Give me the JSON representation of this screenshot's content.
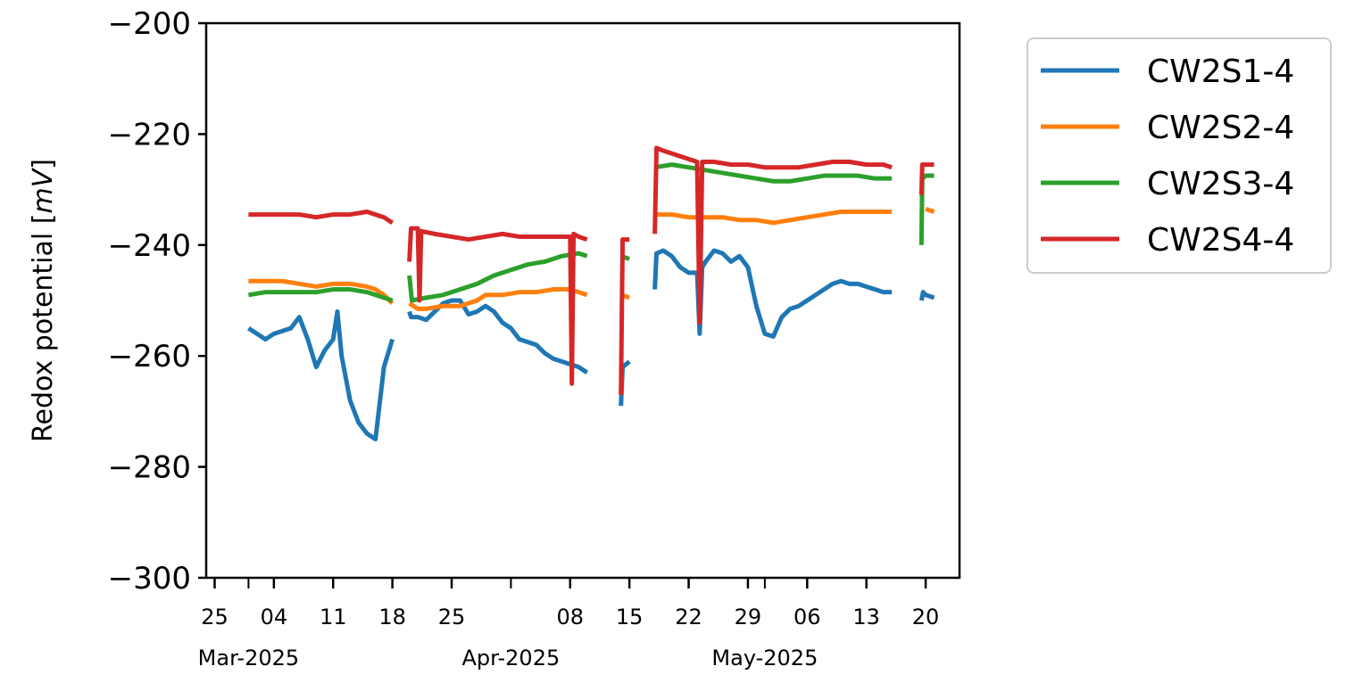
{
  "chart_data": {
    "type": "line",
    "ylabel": "Redox potential [",
    "ylabel_unit": "mV",
    "ylabel_close": "]",
    "ylim": [
      -300,
      -200
    ],
    "yticks": [
      -200,
      -220,
      -240,
      -260,
      -280,
      -300
    ],
    "ytick_labels": [
      "−200",
      "−220",
      "−240",
      "−260",
      "−280",
      "−300"
    ],
    "xlim": [
      "2025-02-24",
      "2025-05-24"
    ],
    "xticks_major": [
      {
        "date": "2025-02-25",
        "label": "25"
      },
      {
        "date": "2025-03-04",
        "label": "04"
      },
      {
        "date": "2025-03-11",
        "label": "11"
      },
      {
        "date": "2025-03-18",
        "label": "18"
      },
      {
        "date": "2025-03-25",
        "label": "25"
      },
      {
        "date": "2025-04-08",
        "label": "08"
      },
      {
        "date": "2025-04-15",
        "label": "15"
      },
      {
        "date": "2025-04-22",
        "label": "22"
      },
      {
        "date": "2025-04-29",
        "label": "29"
      },
      {
        "date": "2025-05-06",
        "label": "06"
      },
      {
        "date": "2025-05-13",
        "label": "13"
      },
      {
        "date": "2025-05-20",
        "label": "20"
      }
    ],
    "xticks_minor": [
      "2025-03-01",
      "2025-04-01",
      "2025-05-01"
    ],
    "month_labels": [
      {
        "date": "2025-03-01",
        "label": "Mar-2025"
      },
      {
        "date": "2025-04-01",
        "label": "Apr-2025"
      },
      {
        "date": "2025-05-01",
        "label": "May-2025"
      }
    ],
    "grid": false,
    "legend_position": "outside-right-top",
    "series": [
      {
        "name": "CW2S1-4",
        "color": "#1f77b4",
        "segments": [
          [
            [
              "2025-03-01",
              -255.0
            ],
            [
              "2025-03-02",
              -256.0
            ],
            [
              "2025-03-03",
              -257.0
            ],
            [
              "2025-03-04",
              -256.0
            ],
            [
              "2025-03-05",
              -255.5
            ],
            [
              "2025-03-06",
              -255.0
            ],
            [
              "2025-03-07",
              -253.0
            ],
            [
              "2025-03-08",
              -257.0
            ],
            [
              "2025-03-09",
              -262.0
            ],
            [
              "2025-03-10",
              -259.0
            ],
            [
              "2025-03-11",
              -257.0
            ],
            [
              "2025-03-11.5",
              -252.0
            ],
            [
              "2025-03-12",
              -260.0
            ],
            [
              "2025-03-13",
              -268.0
            ],
            [
              "2025-03-14",
              -272.0
            ],
            [
              "2025-03-15",
              -274.0
            ],
            [
              "2025-03-16",
              -275.0
            ],
            [
              "2025-03-17",
              -262.0
            ],
            [
              "2025-03-18",
              -257.0
            ]
          ],
          [
            [
              "2025-03-20",
              -252.0
            ],
            [
              "2025-03-20.2",
              -253.0
            ],
            [
              "2025-03-21",
              -253.0
            ],
            [
              "2025-03-22",
              -253.5
            ],
            [
              "2025-03-23",
              -252.0
            ],
            [
              "2025-03-24",
              -250.5
            ],
            [
              "2025-03-25",
              -250.0
            ],
            [
              "2025-03-26",
              -250.0
            ],
            [
              "2025-03-27",
              -252.5
            ],
            [
              "2025-03-28",
              -252.0
            ],
            [
              "2025-03-29",
              -251.0
            ],
            [
              "2025-03-30",
              -252.0
            ],
            [
              "2025-03-31",
              -254.0
            ],
            [
              "2025-04-01",
              -255.0
            ],
            [
              "2025-04-02",
              -257.0
            ],
            [
              "2025-04-03",
              -257.5
            ],
            [
              "2025-04-04",
              -258.0
            ],
            [
              "2025-04-05",
              -259.5
            ],
            [
              "2025-04-06",
              -260.5
            ],
            [
              "2025-04-07",
              -261.0
            ],
            [
              "2025-04-08",
              -261.5
            ],
            [
              "2025-04-09",
              -262.0
            ],
            [
              "2025-04-10",
              -263.0
            ]
          ],
          [
            [
              "2025-04-14",
              -269.0
            ],
            [
              "2025-04-14.2",
              -262.0
            ],
            [
              "2025-04-15",
              -261.0
            ]
          ],
          [
            [
              "2025-04-18",
              -248.0
            ],
            [
              "2025-04-18.2",
              -241.5
            ],
            [
              "2025-04-19",
              -241.0
            ],
            [
              "2025-04-20",
              -242.0
            ],
            [
              "2025-04-21",
              -244.0
            ],
            [
              "2025-04-22",
              -245.0
            ],
            [
              "2025-04-23",
              -245.0
            ],
            [
              "2025-04-23.3",
              -256.0
            ],
            [
              "2025-04-23.6",
              -244.0
            ],
            [
              "2025-04-24",
              -243.0
            ],
            [
              "2025-04-25",
              -241.0
            ],
            [
              "2025-04-26",
              -241.5
            ],
            [
              "2025-04-27",
              -243.0
            ],
            [
              "2025-04-28",
              -242.0
            ],
            [
              "2025-04-29",
              -244.0
            ],
            [
              "2025-04-30",
              -251.0
            ],
            [
              "2025-05-01",
              -256.0
            ],
            [
              "2025-05-02",
              -256.5
            ],
            [
              "2025-05-03",
              -253.0
            ],
            [
              "2025-05-04",
              -251.5
            ],
            [
              "2025-05-05",
              -251.0
            ],
            [
              "2025-05-06",
              -250.0
            ],
            [
              "2025-05-07",
              -249.0
            ],
            [
              "2025-05-08",
              -248.0
            ],
            [
              "2025-05-09",
              -247.0
            ],
            [
              "2025-05-10",
              -246.5
            ],
            [
              "2025-05-11",
              -247.0
            ],
            [
              "2025-05-12",
              -247.0
            ],
            [
              "2025-05-13",
              -247.5
            ],
            [
              "2025-05-14",
              -248.0
            ],
            [
              "2025-05-15",
              -248.5
            ],
            [
              "2025-05-16",
              -248.5
            ]
          ],
          [
            [
              "2025-05-19.5",
              -250.0
            ],
            [
              "2025-05-19.7",
              -248.5
            ],
            [
              "2025-05-20",
              -249.0
            ],
            [
              "2025-05-21",
              -249.5
            ]
          ]
        ]
      },
      {
        "name": "CW2S2-4",
        "color": "#ff7f0e",
        "segments": [
          [
            [
              "2025-03-01",
              -246.5
            ],
            [
              "2025-03-03",
              -246.5
            ],
            [
              "2025-03-05",
              -246.5
            ],
            [
              "2025-03-07",
              -247.0
            ],
            [
              "2025-03-09",
              -247.5
            ],
            [
              "2025-03-11",
              -247.0
            ],
            [
              "2025-03-13",
              -247.0
            ],
            [
              "2025-03-15",
              -247.5
            ],
            [
              "2025-03-16",
              -248.0
            ],
            [
              "2025-03-17",
              -249.0
            ],
            [
              "2025-03-18",
              -250.5
            ]
          ],
          [
            [
              "2025-03-20",
              -250.5
            ],
            [
              "2025-03-21",
              -251.5
            ],
            [
              "2025-03-22",
              -251.5
            ],
            [
              "2025-03-24",
              -251.0
            ],
            [
              "2025-03-26",
              -251.0
            ],
            [
              "2025-03-28",
              -250.0
            ],
            [
              "2025-03-29",
              -249.0
            ],
            [
              "2025-03-31",
              -249.0
            ],
            [
              "2025-04-02",
              -248.5
            ],
            [
              "2025-04-04",
              -248.5
            ],
            [
              "2025-04-06",
              -248.0
            ],
            [
              "2025-04-08",
              -248.0
            ],
            [
              "2025-04-10",
              -249.0
            ]
          ],
          [
            [
              "2025-04-14",
              -249.0
            ],
            [
              "2025-04-15",
              -249.5
            ]
          ],
          [
            [
              "2025-04-18",
              -234.5
            ],
            [
              "2025-04-20",
              -234.5
            ],
            [
              "2025-04-22",
              -235.0
            ],
            [
              "2025-04-24",
              -235.0
            ],
            [
              "2025-04-26",
              -235.0
            ],
            [
              "2025-04-28",
              -235.5
            ],
            [
              "2025-04-30",
              -235.5
            ],
            [
              "2025-05-02",
              -236.0
            ],
            [
              "2025-05-04",
              -235.5
            ],
            [
              "2025-05-06",
              -235.0
            ],
            [
              "2025-05-08",
              -234.5
            ],
            [
              "2025-05-10",
              -234.0
            ],
            [
              "2025-05-12",
              -234.0
            ],
            [
              "2025-05-14",
              -234.0
            ],
            [
              "2025-05-16",
              -234.0
            ]
          ],
          [
            [
              "2025-05-20",
              -233.5
            ],
            [
              "2025-05-21",
              -234.0
            ]
          ]
        ]
      },
      {
        "name": "CW2S3-4",
        "color": "#2ca02c",
        "segments": [
          [
            [
              "2025-03-01",
              -249.0
            ],
            [
              "2025-03-03",
              -248.5
            ],
            [
              "2025-03-05",
              -248.5
            ],
            [
              "2025-03-07",
              -248.5
            ],
            [
              "2025-03-09",
              -248.5
            ],
            [
              "2025-03-11",
              -248.0
            ],
            [
              "2025-03-13",
              -248.0
            ],
            [
              "2025-03-15",
              -248.5
            ],
            [
              "2025-03-17",
              -249.5
            ],
            [
              "2025-03-18",
              -250.0
            ]
          ],
          [
            [
              "2025-03-20",
              -245.5
            ],
            [
              "2025-03-20.3",
              -250.0
            ],
            [
              "2025-03-22",
              -249.5
            ],
            [
              "2025-03-24",
              -249.0
            ],
            [
              "2025-03-26",
              -248.0
            ],
            [
              "2025-03-28",
              -247.0
            ],
            [
              "2025-03-30",
              -245.5
            ],
            [
              "2025-04-01",
              -244.5
            ],
            [
              "2025-04-03",
              -243.5
            ],
            [
              "2025-04-05",
              -243.0
            ],
            [
              "2025-04-07",
              -242.0
            ],
            [
              "2025-04-09",
              -241.5
            ],
            [
              "2025-04-10",
              -242.0
            ]
          ],
          [
            [
              "2025-04-14",
              -242.0
            ],
            [
              "2025-04-15",
              -242.5
            ]
          ],
          [
            [
              "2025-04-18",
              -226.0
            ],
            [
              "2025-04-20",
              -225.5
            ],
            [
              "2025-04-22",
              -226.0
            ],
            [
              "2025-04-24",
              -226.5
            ],
            [
              "2025-04-26",
              -227.0
            ],
            [
              "2025-04-28",
              -227.5
            ],
            [
              "2025-04-30",
              -228.0
            ],
            [
              "2025-05-02",
              -228.5
            ],
            [
              "2025-05-04",
              -228.5
            ],
            [
              "2025-05-06",
              -228.0
            ],
            [
              "2025-05-08",
              -227.5
            ],
            [
              "2025-05-10",
              -227.5
            ],
            [
              "2025-05-12",
              -227.5
            ],
            [
              "2025-05-14",
              -228.0
            ],
            [
              "2025-05-16",
              -228.0
            ]
          ],
          [
            [
              "2025-05-19.5",
              -240.0
            ],
            [
              "2025-05-19.6",
              -228.0
            ],
            [
              "2025-05-20",
              -227.5
            ],
            [
              "2025-05-21",
              -227.5
            ]
          ]
        ]
      },
      {
        "name": "CW2S4-4",
        "color": "#d62728",
        "segments": [
          [
            [
              "2025-03-01",
              -234.5
            ],
            [
              "2025-03-03",
              -234.5
            ],
            [
              "2025-03-05",
              -234.5
            ],
            [
              "2025-03-07",
              -234.5
            ],
            [
              "2025-03-09",
              -235.0
            ],
            [
              "2025-03-11",
              -234.5
            ],
            [
              "2025-03-13",
              -234.5
            ],
            [
              "2025-03-15",
              -234.0
            ],
            [
              "2025-03-17",
              -235.0
            ],
            [
              "2025-03-18",
              -236.0
            ]
          ],
          [
            [
              "2025-03-20",
              -243.0
            ],
            [
              "2025-03-20.2",
              -237.0
            ],
            [
              "2025-03-21",
              -237.0
            ],
            [
              "2025-03-21.2",
              -250.0
            ],
            [
              "2025-03-21.4",
              -237.5
            ],
            [
              "2025-03-23",
              -238.0
            ],
            [
              "2025-03-25",
              -238.5
            ],
            [
              "2025-03-27",
              -239.0
            ],
            [
              "2025-03-29",
              -238.5
            ],
            [
              "2025-03-31",
              -238.0
            ],
            [
              "2025-04-02",
              -238.5
            ],
            [
              "2025-04-04",
              -238.5
            ],
            [
              "2025-04-06",
              -238.5
            ],
            [
              "2025-04-08",
              -238.5
            ],
            [
              "2025-04-08.2",
              -265.0
            ],
            [
              "2025-04-08.4",
              -238.0
            ],
            [
              "2025-04-09",
              -238.5
            ],
            [
              "2025-04-10",
              -239.0
            ]
          ],
          [
            [
              "2025-04-14",
              -267.0
            ],
            [
              "2025-04-14.2",
              -239.0
            ],
            [
              "2025-04-15",
              -239.0
            ]
          ],
          [
            [
              "2025-04-18",
              -238.0
            ],
            [
              "2025-04-18.2",
              -222.5
            ],
            [
              "2025-04-19",
              -223.0
            ],
            [
              "2025-04-21",
              -224.0
            ],
            [
              "2025-04-23",
              -225.0
            ],
            [
              "2025-04-23.3",
              -254.0
            ],
            [
              "2025-04-23.6",
              -225.0
            ],
            [
              "2025-04-25",
              -225.0
            ],
            [
              "2025-04-27",
              -225.5
            ],
            [
              "2025-04-29",
              -225.5
            ],
            [
              "2025-05-01",
              -226.0
            ],
            [
              "2025-05-03",
              -226.0
            ],
            [
              "2025-05-05",
              -226.0
            ],
            [
              "2025-05-07",
              -225.5
            ],
            [
              "2025-05-09",
              -225.0
            ],
            [
              "2025-05-11",
              -225.0
            ],
            [
              "2025-05-13",
              -225.5
            ],
            [
              "2025-05-15",
              -225.5
            ],
            [
              "2025-05-16",
              -226.0
            ]
          ],
          [
            [
              "2025-05-19.5",
              -231.0
            ],
            [
              "2025-05-19.6",
              -225.5
            ],
            [
              "2025-05-20",
              -225.5
            ],
            [
              "2025-05-21",
              -225.5
            ]
          ]
        ]
      }
    ]
  }
}
